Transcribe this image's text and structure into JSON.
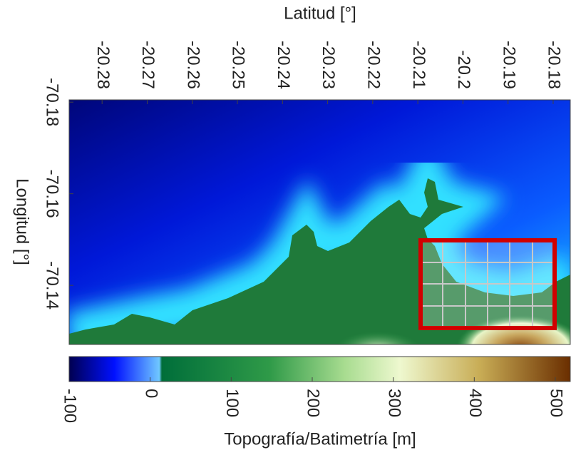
{
  "map": {
    "x_label": "Latitud [°]",
    "x_ticks": [
      -20.28,
      -20.27,
      -20.26,
      -20.25,
      -20.24,
      -20.23,
      -20.22,
      -20.21,
      -20.2,
      -20.19,
      -20.18
    ],
    "xlim": [
      -20.2873,
      -20.1762
    ],
    "y_label": "Longitud [°]",
    "y_ticks": [
      -70.18,
      -70.16,
      -70.14
    ],
    "ylim": [
      -70.1805,
      -70.1271
    ],
    "colorbar": {
      "label": "Topografía/Batimetría [m]",
      "ticks": [
        -100,
        0,
        100,
        200,
        300,
        400,
        500
      ],
      "lim": [
        -100,
        518.5
      ]
    }
  }
}
